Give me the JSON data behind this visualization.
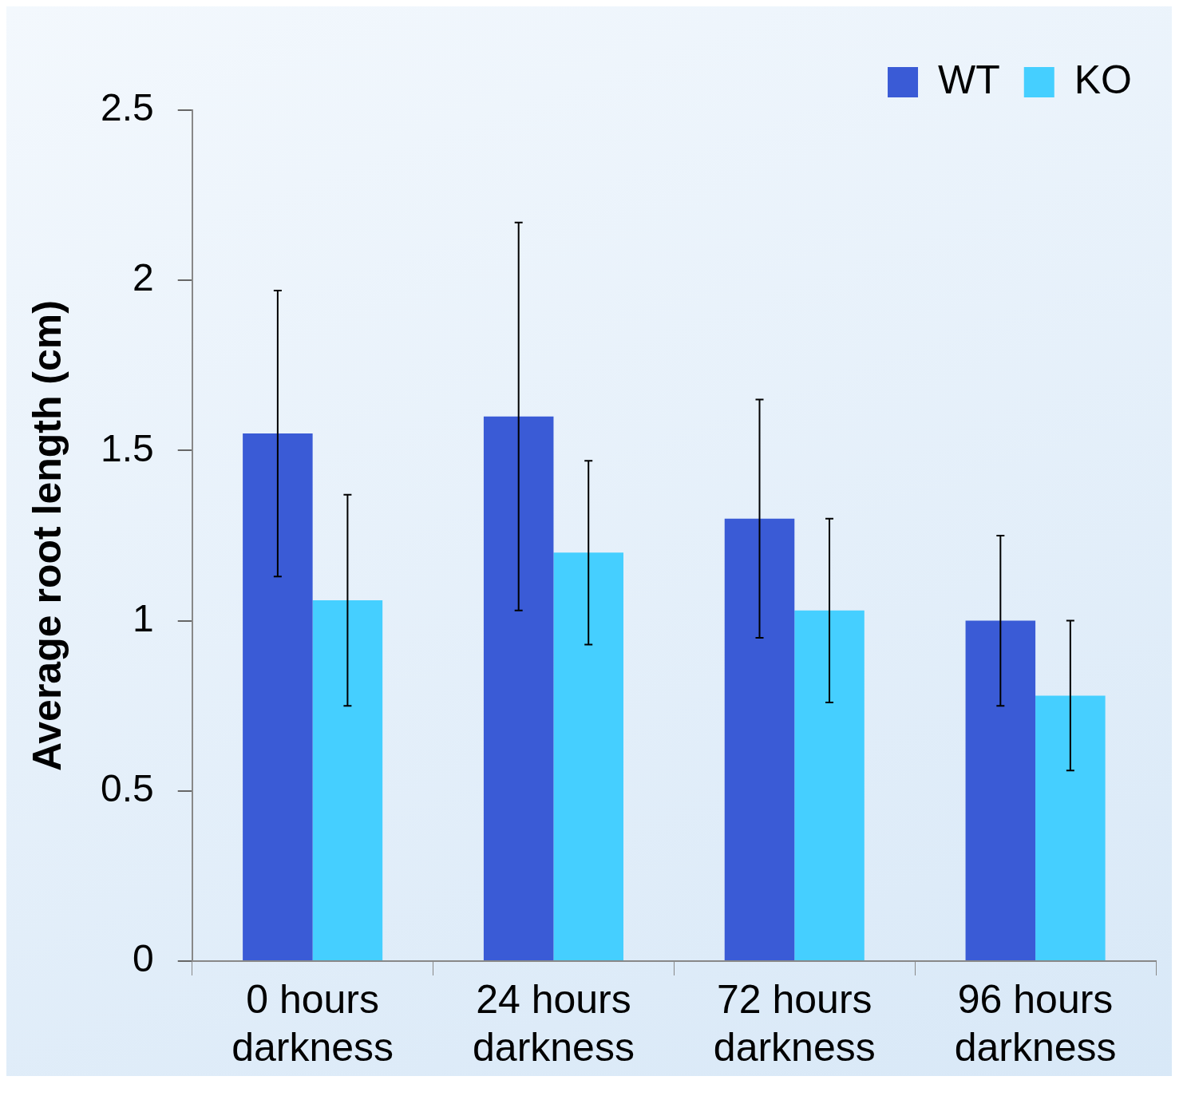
{
  "chart_data": {
    "type": "bar",
    "ylabel": "Average root length (cm)",
    "categories": [
      "0 hours darkness",
      "24 hours darkness",
      "72 hours darkness",
      "96 hours darkness"
    ],
    "series": [
      {
        "name": "WT",
        "color": "#3a5bd6",
        "values": [
          1.55,
          1.6,
          1.3,
          1.0
        ],
        "errors": [
          0.42,
          0.57,
          0.35,
          0.25
        ]
      },
      {
        "name": "KO",
        "color": "#45cfff",
        "values": [
          1.06,
          1.2,
          1.03,
          0.78
        ],
        "errors": [
          0.31,
          0.27,
          0.27,
          0.22
        ]
      }
    ],
    "ylim": [
      0,
      2.5
    ],
    "yticks": [
      0,
      0.5,
      1,
      1.5,
      2,
      2.5
    ],
    "grid": false,
    "legend": "top right"
  }
}
